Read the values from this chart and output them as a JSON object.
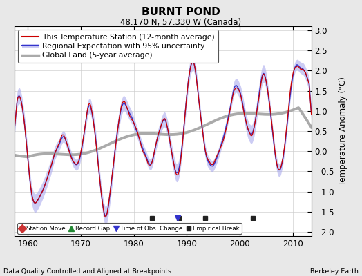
{
  "title": "BURNT POND",
  "subtitle": "48.170 N, 57.330 W (Canada)",
  "ylabel": "Temperature Anomaly (°C)",
  "xlabel_left": "Data Quality Controlled and Aligned at Breakpoints",
  "xlabel_right": "Berkeley Earth",
  "year_start": 1957.5,
  "year_end": 2013.5,
  "xlim": [
    1957.5,
    2013.5
  ],
  "ylim": [
    -2.1,
    3.1
  ],
  "yticks": [
    -2,
    -1.5,
    -1,
    -0.5,
    0,
    0.5,
    1,
    1.5,
    2,
    2.5,
    3
  ],
  "xticks": [
    1960,
    1970,
    1980,
    1990,
    2000,
    2010
  ],
  "legend_entries": [
    "This Temperature Station (12-month average)",
    "Regional Expectation with 95% uncertainty",
    "Global Land (5-year average)"
  ],
  "station_color": "#cc0000",
  "regional_color": "#3333cc",
  "regional_fill_color": "#aaaaee",
  "global_color": "#aaaaaa",
  "bg_color": "#e8e8e8",
  "plot_bg_color": "#ffffff",
  "empirical_breaks": [
    1983.5,
    1988.5,
    1993.5,
    2002.5
  ],
  "time_obs_change": [
    1988.3
  ],
  "seed": 12345
}
